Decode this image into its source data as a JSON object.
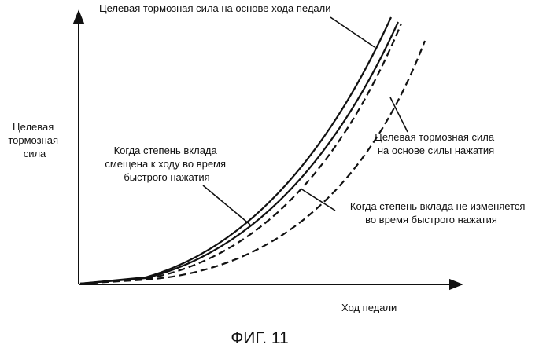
{
  "figure": {
    "caption": "ФИГ. 11",
    "x_axis_label": "Ход педали",
    "y_axis_label": [
      "Целевая",
      "тормозная",
      "сила"
    ]
  },
  "curves": {
    "stroke_target": {
      "label": "Целевая тормозная сила на основе хода педали",
      "style": "solid"
    },
    "ratio_shifted": {
      "label": [
        "Когда степень вклада",
        "смещена к ходу во время",
        "быстрого нажатия"
      ],
      "style": "solid"
    },
    "ratio_unchanged": {
      "label": [
        "Когда степень вклада не изменяется",
        "во время быстрого нажатия"
      ],
      "style": "dashed"
    },
    "force_target": {
      "label": [
        "Целевая тормозная сила",
        "на основе силы нажатия"
      ],
      "style": "dashed"
    }
  }
}
